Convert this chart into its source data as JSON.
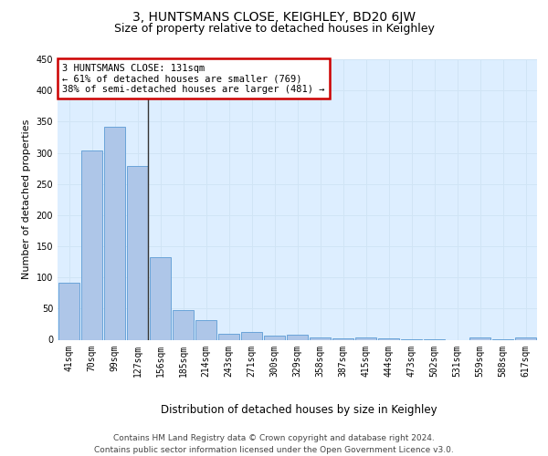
{
  "title1": "3, HUNTSMANS CLOSE, KEIGHLEY, BD20 6JW",
  "title2": "Size of property relative to detached houses in Keighley",
  "xlabel": "Distribution of detached houses by size in Keighley",
  "ylabel": "Number of detached properties",
  "categories": [
    "41sqm",
    "70sqm",
    "99sqm",
    "127sqm",
    "156sqm",
    "185sqm",
    "214sqm",
    "243sqm",
    "271sqm",
    "300sqm",
    "329sqm",
    "358sqm",
    "387sqm",
    "415sqm",
    "444sqm",
    "473sqm",
    "502sqm",
    "531sqm",
    "559sqm",
    "588sqm",
    "617sqm"
  ],
  "values": [
    92,
    303,
    341,
    279,
    133,
    47,
    32,
    10,
    12,
    7,
    8,
    4,
    2,
    3,
    2,
    1,
    1,
    0,
    3,
    1,
    3
  ],
  "bar_color": "#aec6e8",
  "bar_edge_color": "#5b9bd5",
  "annotation_box_text": "3 HUNTSMANS CLOSE: 131sqm\n← 61% of detached houses are smaller (769)\n38% of semi-detached houses are larger (481) →",
  "annotation_box_color": "#ffffff",
  "annotation_box_edge_color": "#cc0000",
  "vline_color": "#333333",
  "ylim": [
    0,
    450
  ],
  "yticks": [
    0,
    50,
    100,
    150,
    200,
    250,
    300,
    350,
    400,
    450
  ],
  "grid_color": "#d0e4f5",
  "background_color": "#ddeeff",
  "footer_text": "Contains HM Land Registry data © Crown copyright and database right 2024.\nContains public sector information licensed under the Open Government Licence v3.0.",
  "title1_fontsize": 10,
  "title2_fontsize": 9,
  "xlabel_fontsize": 8.5,
  "ylabel_fontsize": 8,
  "tick_fontsize": 7,
  "footer_fontsize": 6.5,
  "ann_fontsize": 7.5
}
